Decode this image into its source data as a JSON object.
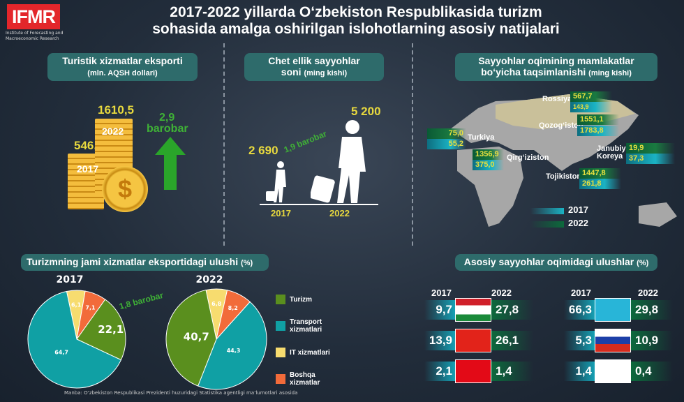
{
  "header": {
    "logo": "IFMR",
    "logo_sub": "Institute of Forecasting and Macroeconomic Research",
    "title_line1": "2017-2022 yillarda O‘zbekiston Respublikasida turizm",
    "title_line2": "sohasida amalga oshirilgan islohotlarning asosiy natijalari"
  },
  "export": {
    "title": "Turistik xizmatlar eksporti",
    "unit": "(mln. AQSH dollari)",
    "v2017": "546,9",
    "v2022": "1610,5",
    "y2017": "2017",
    "y2022": "2022",
    "growth": "2,9",
    "growth_word": "barobar"
  },
  "tourists": {
    "title": "Chet ellik sayyohlar",
    "title2": "soni",
    "unit": "(ming kishi)",
    "v2017": "2 690",
    "v2022": "5 200",
    "y2017": "2017",
    "y2022": "2022",
    "growth": "1,9 barobar"
  },
  "map": {
    "title": "Sayyohlar oqimining mamlakatlar",
    "title2": "bo‘yicha taqsimlanishi",
    "unit": "(ming kishi)",
    "countries": [
      {
        "name": "Rossiya",
        "v2022": "567,7",
        "v2017": "143,9"
      },
      {
        "name": "Qozog‘iston",
        "v2022": "1551,1",
        "v2017": "1783,8"
      },
      {
        "name": "Turkiya",
        "v2022": "75,0",
        "v2017": "55,2"
      },
      {
        "name": "Qirg‘iziston",
        "v2022": "1356,9",
        "v2017": "375,0"
      },
      {
        "name": "Tojikiston",
        "v2022": "1447,8",
        "v2017": "261,8"
      },
      {
        "name": "Janubiy Koreya",
        "v2022": "19,9",
        "v2017": "37,3"
      }
    ],
    "legend": [
      "2017",
      "2022"
    ],
    "colors": {
      "2017": "#1bb3c4",
      "2022": "#0c6a3c"
    }
  },
  "share": {
    "title": "Turizmning jami xizmatlar eksportidagi ulushi",
    "unit": "(%)",
    "growth": "1,8 barobar"
  },
  "chart_data": [
    {
      "type": "pie",
      "title": "2017",
      "categories": [
        "IT xizmatlari",
        "Boshqa xizmatlar",
        "Turizm",
        "Transport xizmatlari"
      ],
      "values": [
        6.1,
        7.1,
        22.1,
        64.7
      ],
      "labels": [
        "6,1",
        "7,1",
        "22,1",
        "64,7"
      ],
      "colors": [
        "#f7dc6f",
        "#f26b3a",
        "#5a8f1e",
        "#10a0a4"
      ]
    },
    {
      "type": "pie",
      "title": "2022",
      "categories": [
        "IT xizmatlari",
        "Boshqa xizmatlar",
        "Transport xizmatlari",
        "Turizm"
      ],
      "values": [
        6.8,
        8.2,
        44.3,
        40.7
      ],
      "labels": [
        "6,8",
        "8,2",
        "44,3",
        "40,7"
      ],
      "colors": [
        "#f7dc6f",
        "#f26b3a",
        "#10a0a4",
        "#5a8f1e"
      ]
    }
  ],
  "legend": [
    {
      "label": "Turizm",
      "color": "#5a8f1e"
    },
    {
      "label": "Transport xizmatlari",
      "color": "#10a0a4"
    },
    {
      "label": "IT xizmatlari",
      "color": "#f7dc6f"
    },
    {
      "label": "Boshqa xizmatlar",
      "color": "#f26b3a"
    }
  ],
  "flows": {
    "title": "Asosiy sayyohlar oqimidagi ulushlar",
    "unit": "(%)",
    "y2017": "2017",
    "y2022": "2022",
    "rows": [
      {
        "country": "Tojikiston",
        "v2017": "9,7",
        "v2022": "27,8"
      },
      {
        "country": "Qozog‘iston",
        "v2017": "66,3",
        "v2022": "29,8"
      },
      {
        "country": "Qirg‘iziston",
        "v2017": "13,9",
        "v2022": "26,1"
      },
      {
        "country": "Rossiya",
        "v2017": "5,3",
        "v2022": "10,9"
      },
      {
        "country": "Turkiya",
        "v2017": "2,1",
        "v2022": "1,4"
      },
      {
        "country": "Janubiy Koreya",
        "v2017": "1,4",
        "v2022": "0,4"
      }
    ]
  },
  "source": "Manba: O‘zbekiston Respublikasi Prezidenti huzuridagi Statistika agentligi ma’lumotlari asosida"
}
